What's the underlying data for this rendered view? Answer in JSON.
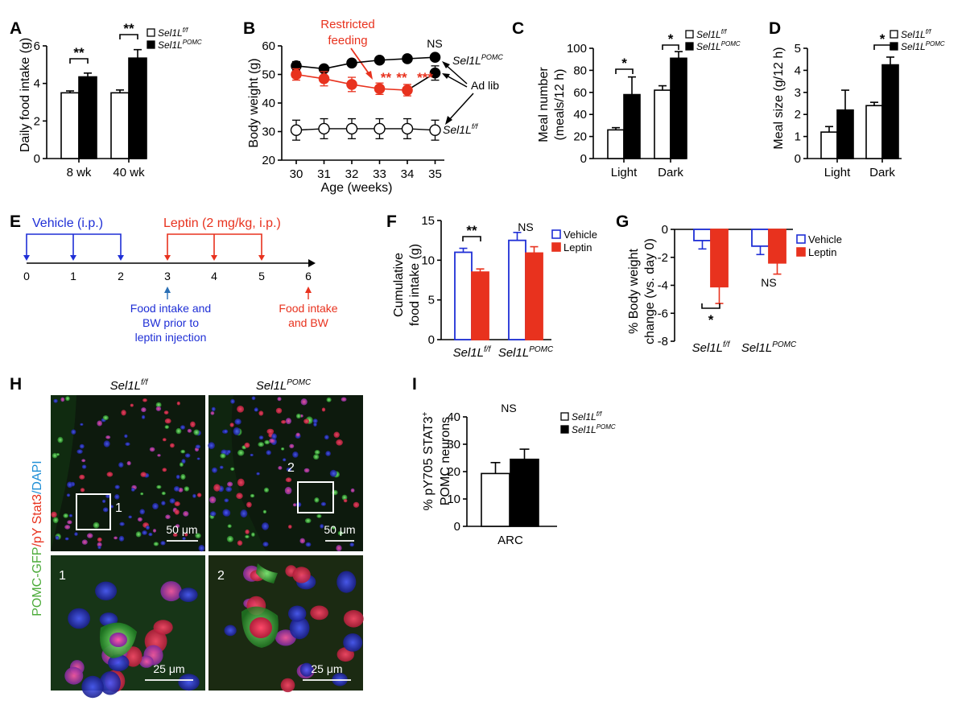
{
  "colors": {
    "black": "#000000",
    "white": "#ffffff",
    "red": "#e8321e",
    "blue": "#1f2fd6",
    "micro_green": "#2f8a2e",
    "micro_blue": "#1d2aa8",
    "micro_red": "#d12c3c"
  },
  "genotype": {
    "ff_base": "Sel1L",
    "ff_sup": "f/f",
    "pomc_base": "Sel1L",
    "pomc_sup": "POMC"
  },
  "chart_data": [
    {
      "id": "A",
      "type": "bar",
      "panel_letter": "A",
      "ylabel": "Daily food intake (g)",
      "ylim": [
        0,
        6
      ],
      "yticks": [
        "0",
        "2",
        "4",
        "6"
      ],
      "categories": [
        "8 wk",
        "40 wk"
      ],
      "series": [
        {
          "name": "Sel1L f/f",
          "values": [
            3.5,
            3.5
          ],
          "errors": [
            0.1,
            0.15
          ]
        },
        {
          "name": "Sel1L POMC",
          "values": [
            4.35,
            5.35
          ],
          "errors": [
            0.2,
            0.45
          ]
        }
      ],
      "annotations": [
        "**",
        "**"
      ],
      "legend": "top-right"
    },
    {
      "id": "B",
      "type": "line",
      "panel_letter": "B",
      "ylabel": "Body weight (g)",
      "xlabel": "Age (weeks)",
      "xlim": [
        30,
        35
      ],
      "ylim": [
        20,
        60
      ],
      "xticks": [
        "30",
        "31",
        "32",
        "33",
        "34",
        "35"
      ],
      "yticks": [
        "20",
        "30",
        "40",
        "50",
        "60"
      ],
      "series": [
        {
          "name": "Sel1L POMC",
          "x": [
            30,
            31,
            32,
            33,
            34,
            35
          ],
          "y": [
            53,
            52,
            54,
            55,
            55.5,
            56
          ],
          "errors": [
            1.5,
            1,
            1,
            1,
            1,
            1
          ]
        },
        {
          "name": "Sel1L POMC restricted",
          "x": [
            30,
            31,
            32,
            33,
            34,
            35
          ],
          "y": [
            50,
            48.5,
            46.5,
            45,
            44.5,
            50.5
          ],
          "errors": [
            2,
            2.5,
            2.5,
            2,
            2,
            2.5
          ]
        },
        {
          "name": "Sel1L f/f",
          "x": [
            30,
            31,
            32,
            33,
            34,
            35
          ],
          "y": [
            30.5,
            31,
            31,
            31,
            31,
            30.5
          ],
          "errors": [
            3.5,
            3.5,
            3.5,
            3.5,
            3.5,
            3.5
          ]
        }
      ],
      "restricted_label_line1": "Restricted",
      "restricted_label_line2": "feeding",
      "ad_lib_label": "Ad lib",
      "ns_label": "NS",
      "star_labels": [
        "**",
        "**",
        "***"
      ]
    },
    {
      "id": "C",
      "type": "bar",
      "panel_letter": "C",
      "ylabel_line1": "Meal number",
      "ylabel_line2": "(meals/12 h)",
      "ylim": [
        0,
        100
      ],
      "yticks": [
        "0",
        "20",
        "40",
        "60",
        "80",
        "100"
      ],
      "categories": [
        "Light",
        "Dark"
      ],
      "series": [
        {
          "name": "Sel1L f/f",
          "values": [
            26,
            62
          ],
          "errors": [
            2,
            4
          ]
        },
        {
          "name": "Sel1L POMC",
          "values": [
            58,
            91
          ],
          "errors": [
            16,
            6
          ]
        }
      ],
      "annotations": [
        "*",
        "*"
      ],
      "legend": "top-right"
    },
    {
      "id": "D",
      "type": "bar",
      "panel_letter": "D",
      "ylabel": "Meal size (g/12 h)",
      "ylim": [
        0,
        5
      ],
      "yticks": [
        "0",
        "1",
        "2",
        "3",
        "4",
        "5"
      ],
      "categories": [
        "Light",
        "Dark"
      ],
      "series": [
        {
          "name": "Sel1L f/f",
          "values": [
            1.2,
            2.4
          ],
          "errors": [
            0.25,
            0.15
          ]
        },
        {
          "name": "Sel1L POMC",
          "values": [
            2.2,
            4.25
          ],
          "errors": [
            0.9,
            0.35
          ]
        }
      ],
      "annotations": [
        "*"
      ],
      "legend": "top-right"
    },
    {
      "id": "F",
      "type": "bar",
      "panel_letter": "F",
      "ylabel_line1": "Cumulative",
      "ylabel_line2": "food intake (g)",
      "ylim": [
        0,
        15
      ],
      "yticks": [
        "0",
        "5",
        "10",
        "15"
      ],
      "categories": [
        "Sel1L f/f",
        "Sel1L POMC"
      ],
      "series": [
        {
          "name": "Vehicle",
          "values": [
            11,
            12.5
          ],
          "errors": [
            0.5,
            1
          ]
        },
        {
          "name": "Leptin",
          "values": [
            8.5,
            10.9
          ],
          "errors": [
            0.4,
            0.8
          ]
        }
      ],
      "annotations": [
        "**",
        "NS"
      ],
      "legend": "top-right"
    },
    {
      "id": "G",
      "type": "bar",
      "panel_letter": "G",
      "ylabel_line1": "% Body weight",
      "ylabel_line2": "change (vs. day 0)",
      "ylim": [
        -8,
        0
      ],
      "yticks": [
        "0",
        "-2",
        "-4",
        "-6",
        "-8"
      ],
      "categories": [
        "Sel1L f/f",
        "Sel1L POMC"
      ],
      "series": [
        {
          "name": "Vehicle",
          "values": [
            -0.8,
            -1.2
          ],
          "errors": [
            0.6,
            0.6
          ]
        },
        {
          "name": "Leptin",
          "values": [
            -4.1,
            -2.4
          ],
          "errors": [
            1.2,
            0.8
          ]
        }
      ],
      "annotations": [
        "*",
        "NS"
      ],
      "legend": "top-right"
    },
    {
      "id": "I",
      "type": "bar",
      "panel_letter": "I",
      "ylabel_line1": "% pY705 STAT3",
      "ylabel_line1_sup": "+",
      "ylabel_line2": "POMC neurons",
      "ylim": [
        0,
        40
      ],
      "yticks": [
        "0",
        "10",
        "20",
        "30",
        "40"
      ],
      "categories": [
        "ARC"
      ],
      "series": [
        {
          "name": "Sel1L f/f",
          "values": [
            19.3
          ],
          "errors": [
            4
          ]
        },
        {
          "name": "Sel1L POMC",
          "values": [
            24.5
          ],
          "errors": [
            3.7
          ]
        }
      ],
      "annotations": [
        "NS"
      ],
      "legend": "top-right"
    }
  ],
  "panel_e": {
    "letter": "E",
    "vehicle_label": "Vehicle (i.p.)",
    "leptin_label": "Leptin (2 mg/kg, i.p.)",
    "days": [
      "0",
      "1",
      "2",
      "3",
      "4",
      "5",
      "6"
    ],
    "note_blue": [
      "Food intake and",
      "BW prior to",
      "leptin injection"
    ],
    "note_red": [
      "Food intake",
      "and BW"
    ]
  },
  "panel_h": {
    "letter": "H",
    "stain_green": "POMC-GFP",
    "stain_red": "/pY Stat3",
    "stain_blue": "/DAPI",
    "scale_top": "50 μm",
    "scale_bottom": "25 μm",
    "box1": "1",
    "box2": "2"
  }
}
